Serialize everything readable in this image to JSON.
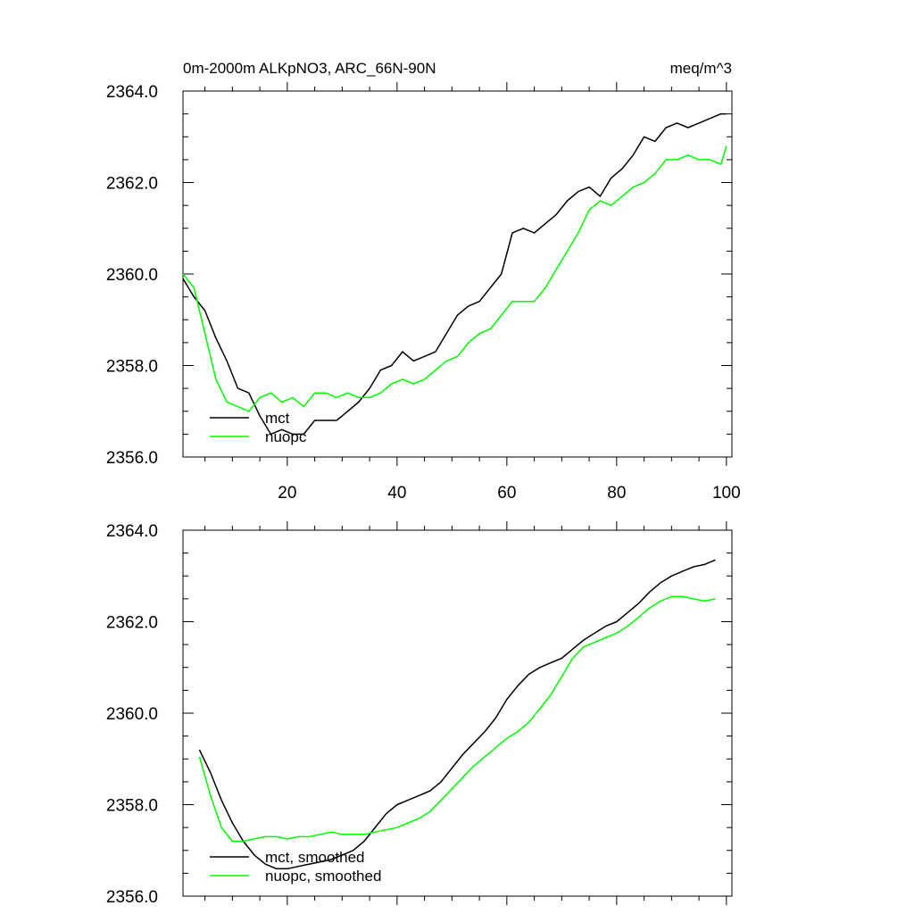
{
  "chart_data": [
    {
      "type": "line",
      "title": "0m-2000m ALKpNO3, ARC_66N-90N",
      "units": "meq/m^3",
      "xlim": [
        1,
        101
      ],
      "ylim": [
        2356.0,
        2364.0
      ],
      "xticks": [
        20,
        40,
        60,
        80,
        100
      ],
      "yticks": [
        2356.0,
        2358.0,
        2360.0,
        2362.0,
        2364.0
      ],
      "ytick_labels": [
        "2356.0",
        "2358.0",
        "2360.0",
        "2362.0",
        "2364.0"
      ],
      "xtick_labels": [
        "20",
        "40",
        "60",
        "80",
        "100"
      ],
      "legend_position": "lower-left",
      "series": [
        {
          "name": "mct",
          "color": "#000000",
          "x": [
            1,
            3,
            5,
            7,
            9,
            11,
            13,
            15,
            17,
            19,
            21,
            23,
            25,
            27,
            29,
            31,
            33,
            35,
            37,
            39,
            41,
            43,
            45,
            47,
            49,
            51,
            53,
            55,
            57,
            59,
            61,
            63,
            65,
            67,
            69,
            71,
            73,
            75,
            77,
            79,
            81,
            83,
            85,
            87,
            89,
            91,
            93,
            95,
            97,
            99,
            100
          ],
          "values": [
            2359.9,
            2359.5,
            2359.2,
            2358.6,
            2358.1,
            2357.5,
            2357.4,
            2356.9,
            2356.5,
            2356.6,
            2356.5,
            2356.5,
            2356.8,
            2356.8,
            2356.8,
            2357.0,
            2357.2,
            2357.5,
            2357.9,
            2358.0,
            2358.3,
            2358.1,
            2358.2,
            2358.3,
            2358.7,
            2359.1,
            2359.3,
            2359.4,
            2359.7,
            2360.0,
            2360.9,
            2361.0,
            2360.9,
            2361.1,
            2361.3,
            2361.6,
            2361.8,
            2361.9,
            2361.7,
            2362.1,
            2362.3,
            2362.6,
            2363.0,
            2362.9,
            2363.2,
            2363.3,
            2363.2,
            2363.3,
            2363.4,
            2363.5,
            2363.5
          ]
        },
        {
          "name": "nuopc",
          "color": "#00ff00",
          "x": [
            1,
            3,
            5,
            7,
            9,
            11,
            13,
            15,
            17,
            19,
            21,
            23,
            25,
            27,
            29,
            31,
            33,
            35,
            37,
            39,
            41,
            43,
            45,
            47,
            49,
            51,
            53,
            55,
            57,
            59,
            61,
            63,
            65,
            67,
            69,
            71,
            73,
            75,
            77,
            79,
            81,
            83,
            85,
            87,
            89,
            91,
            93,
            95,
            97,
            99,
            100
          ],
          "values": [
            2360.0,
            2359.7,
            2358.7,
            2357.7,
            2357.2,
            2357.1,
            2357.0,
            2357.3,
            2357.4,
            2357.2,
            2357.3,
            2357.1,
            2357.4,
            2357.4,
            2357.3,
            2357.4,
            2357.3,
            2357.3,
            2357.4,
            2357.6,
            2357.7,
            2357.6,
            2357.7,
            2357.9,
            2358.1,
            2358.2,
            2358.5,
            2358.7,
            2358.8,
            2359.1,
            2359.4,
            2359.4,
            2359.4,
            2359.7,
            2360.1,
            2360.5,
            2360.9,
            2361.4,
            2361.6,
            2361.5,
            2361.7,
            2361.9,
            2362.0,
            2362.2,
            2362.5,
            2362.5,
            2362.6,
            2362.5,
            2362.5,
            2362.4,
            2362.8
          ]
        }
      ]
    },
    {
      "type": "line",
      "xlim": [
        1,
        101
      ],
      "ylim": [
        2356.0,
        2364.0
      ],
      "xticks": [
        20,
        40,
        60,
        80,
        100
      ],
      "yticks": [
        2356.0,
        2358.0,
        2360.0,
        2362.0,
        2364.0
      ],
      "ytick_labels": [
        "2356.0",
        "2358.0",
        "2360.0",
        "2362.0",
        "2364.0"
      ],
      "legend_position": "lower-left",
      "series": [
        {
          "name": "mct, smoothed",
          "color": "#000000",
          "x": [
            4,
            6,
            8,
            10,
            12,
            14,
            16,
            18,
            20,
            22,
            24,
            26,
            28,
            30,
            32,
            34,
            36,
            38,
            40,
            42,
            44,
            46,
            48,
            50,
            52,
            54,
            56,
            58,
            60,
            62,
            64,
            66,
            68,
            70,
            72,
            74,
            76,
            78,
            80,
            82,
            84,
            86,
            88,
            90,
            92,
            94,
            96,
            98
          ],
          "values": [
            2359.2,
            2358.7,
            2358.1,
            2357.6,
            2357.2,
            2356.9,
            2356.7,
            2356.6,
            2356.6,
            2356.65,
            2356.7,
            2356.75,
            2356.8,
            2356.9,
            2357.0,
            2357.2,
            2357.5,
            2357.8,
            2358.0,
            2358.1,
            2358.2,
            2358.3,
            2358.5,
            2358.8,
            2359.1,
            2359.35,
            2359.6,
            2359.9,
            2360.3,
            2360.6,
            2360.85,
            2361.0,
            2361.1,
            2361.2,
            2361.4,
            2361.6,
            2361.75,
            2361.9,
            2362.0,
            2362.2,
            2362.4,
            2362.65,
            2362.85,
            2363.0,
            2363.1,
            2363.2,
            2363.25,
            2363.35
          ]
        },
        {
          "name": "nuopc, smoothed",
          "color": "#00ff00",
          "x": [
            4,
            6,
            8,
            10,
            12,
            14,
            16,
            18,
            20,
            22,
            24,
            26,
            28,
            30,
            32,
            34,
            36,
            38,
            40,
            42,
            44,
            46,
            48,
            50,
            52,
            54,
            56,
            58,
            60,
            62,
            64,
            66,
            68,
            70,
            72,
            74,
            76,
            78,
            80,
            82,
            84,
            86,
            88,
            90,
            92,
            94,
            96,
            98
          ],
          "values": [
            2359.05,
            2358.2,
            2357.5,
            2357.2,
            2357.2,
            2357.25,
            2357.3,
            2357.3,
            2357.25,
            2357.3,
            2357.3,
            2357.35,
            2357.4,
            2357.35,
            2357.35,
            2357.35,
            2357.4,
            2357.45,
            2357.5,
            2357.6,
            2357.7,
            2357.85,
            2358.1,
            2358.35,
            2358.6,
            2358.85,
            2359.05,
            2359.25,
            2359.45,
            2359.6,
            2359.8,
            2360.1,
            2360.4,
            2360.8,
            2361.2,
            2361.45,
            2361.55,
            2361.65,
            2361.75,
            2361.9,
            2362.1,
            2362.3,
            2362.45,
            2362.55,
            2362.55,
            2362.5,
            2362.45,
            2362.5
          ]
        }
      ]
    }
  ]
}
